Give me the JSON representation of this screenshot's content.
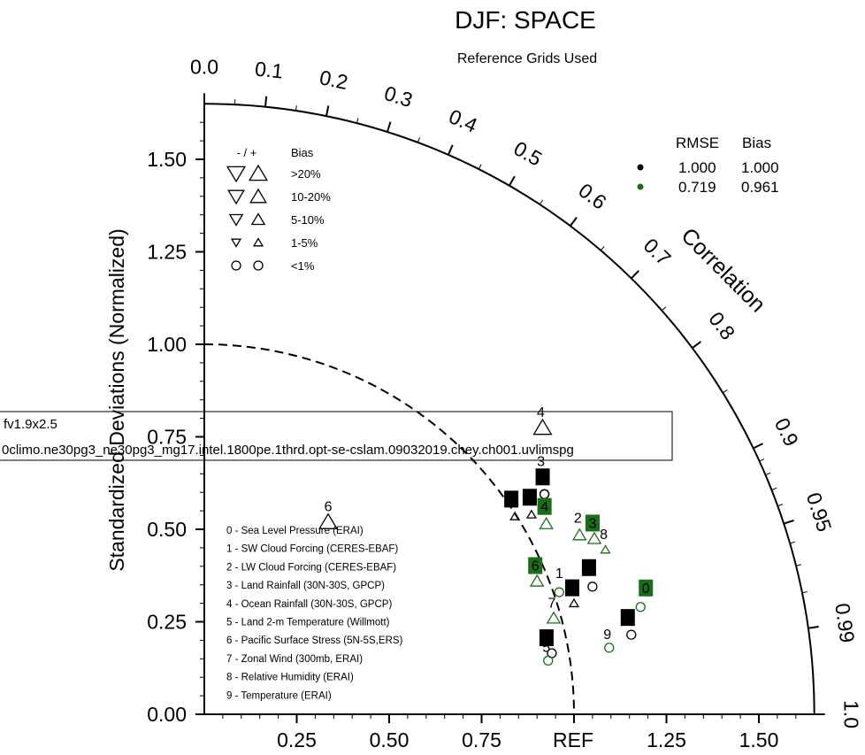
{
  "title": "DJF: SPACE",
  "subtitle": "Reference Grids Used",
  "ylabel": "Standardized Deviations (Normalized)",
  "arc_label": "Correlation",
  "ref_label": "REF",
  "y_ticks": [
    "0.00",
    "0.25",
    "0.50",
    "0.75",
    "1.00",
    "1.25",
    "1.50"
  ],
  "x_ticks": [
    "0.25",
    "0.50",
    "0.75",
    "1.25",
    "1.50"
  ],
  "corr_ticks": [
    "0.0",
    "0.1",
    "0.2",
    "0.3",
    "0.4",
    "0.5",
    "0.6",
    "0.7",
    "0.8",
    "0.9",
    "0.95",
    "0.99",
    "1.0"
  ],
  "bias_legend": {
    "header_sign": "- / +",
    "header_bias": "Bias",
    "rows": [
      ">20%",
      "10-20%",
      "5-10%",
      "1-5%",
      "<1%"
    ]
  },
  "stats_legend": {
    "header_rmse": "RMSE",
    "header_bias": "Bias",
    "rows": [
      {
        "rmse": "1.000",
        "bias": "1.000",
        "color": "#000000"
      },
      {
        "rmse": "0.719",
        "bias": "0.961",
        "color": "#1a6e1a"
      }
    ]
  },
  "case_box": {
    "line1": "fv1.9x2.5",
    "line2": "0climo.ne30pg3_ne30pg3_mg17.intel.1800pe.1thrd.opt-se-cslam.09032019.chey.ch001.uvlimspg"
  },
  "variables": [
    "0 - Sea Level Pressure (ERAI)",
    "1 - SW Cloud Forcing (CERES-EBAF)",
    "2 - LW Cloud Forcing (CERES-EBAF)",
    "3 - Land Rainfall (30N-30S, GPCP)",
    "4 - Ocean Rainfall (30N-30S, GPCP)",
    "5 - Land 2-m Temperature (Willmott)",
    "6 - Pacific Surface Stress (5N-5S,ERS)",
    "7 - Zonal Wind (300mb, ERAI)",
    "8 - Relative Humidity (ERAI)",
    "9 - Temperature (ERAI)"
  ],
  "chart_data": {
    "type": "scatter",
    "description_type": "taylor-diagram",
    "title": "DJF: SPACE",
    "subtitle": "Reference Grids Used",
    "ylabel": "Standardized Deviations (Normalized)",
    "arc_label": "Correlation",
    "std_range": [
      0,
      1.65
    ],
    "reference_std": 1.0,
    "series": [
      {
        "name": "fv1.9x2.5",
        "color": "#000000",
        "label_style": "box",
        "points": [
          {
            "id": "0",
            "x": 1.05,
            "y": 0.345,
            "marker": "circle",
            "bias_class": "<1%",
            "label": "0"
          },
          {
            "id": "1",
            "x": 0.84,
            "y": 0.535,
            "marker": "up",
            "bias_class": "1-5%",
            "label": "1"
          },
          {
            "id": "2",
            "x": 0.92,
            "y": 0.595,
            "marker": "circle",
            "bias_class": "<1%",
            "label": "2"
          },
          {
            "id": "3",
            "x": 0.92,
            "y": 0.595,
            "marker": "circle",
            "bias_class": "<1%",
            "label": "3",
            "label_plain": true
          },
          {
            "id": "4",
            "x": 0.915,
            "y": 0.775,
            "marker": "up",
            "bias_class": ">20%",
            "label": "4",
            "label_plain": true
          },
          {
            "id": "5",
            "x": 0.94,
            "y": 0.165,
            "marker": "circle",
            "bias_class": "<1%",
            "label": "5"
          },
          {
            "id": "6",
            "x": 0.335,
            "y": 0.52,
            "marker": "up",
            "bias_class": ">20%",
            "label": "6",
            "label_plain": true
          },
          {
            "id": "7",
            "x": 1.0,
            "y": 0.3,
            "marker": "up",
            "bias_class": "1-5%",
            "label": "7"
          },
          {
            "id": "8",
            "x": 0.885,
            "y": 0.54,
            "marker": "up",
            "bias_class": "1-5%",
            "label": "8"
          },
          {
            "id": "9",
            "x": 1.155,
            "y": 0.215,
            "marker": "circle",
            "bias_class": "<1%",
            "label": "9"
          }
        ]
      },
      {
        "name": "0climo.ne30pg3_ne30pg3_mg17.intel.1800pe.1thrd.opt-se-cslam.09032019.chey.ch001.uvlimspg",
        "color": "#1a6e1a",
        "label_style": "mixed",
        "points": [
          {
            "id": "0",
            "x": 1.18,
            "y": 0.29,
            "marker": "circle",
            "bias_class": "<1%",
            "label": "0"
          },
          {
            "id": "1",
            "x": 0.96,
            "y": 0.33,
            "marker": "circle",
            "bias_class": "<1%",
            "label": "1",
            "label_plain": true
          },
          {
            "id": "2",
            "x": 1.015,
            "y": 0.485,
            "marker": "up",
            "bias_class": "5-10%",
            "label": "2",
            "label_plain": true
          },
          {
            "id": "3",
            "x": 1.055,
            "y": 0.475,
            "marker": "up",
            "bias_class": "5-10%",
            "label": "3"
          },
          {
            "id": "4",
            "x": 0.925,
            "y": 0.515,
            "marker": "up",
            "bias_class": "5-10%",
            "label": "4"
          },
          {
            "id": "5",
            "x": 0.93,
            "y": 0.145,
            "marker": "circle",
            "bias_class": "<1%",
            "label": "5",
            "label_plain": true
          },
          {
            "id": "6",
            "x": 0.9,
            "y": 0.36,
            "marker": "up",
            "bias_class": "5-10%",
            "label": "6"
          },
          {
            "id": "7",
            "x": 0.945,
            "y": 0.26,
            "marker": "up",
            "bias_class": "5-10%",
            "label": "7",
            "label_plain": true
          },
          {
            "id": "8",
            "x": 1.085,
            "y": 0.445,
            "marker": "up",
            "bias_class": "1-5%",
            "label": "8",
            "label_plain": true
          },
          {
            "id": "9",
            "x": 1.095,
            "y": 0.18,
            "marker": "circle",
            "bias_class": "<1%",
            "label": "9",
            "label_plain": true
          }
        ]
      }
    ],
    "legend_placement": "top-right",
    "grid": false
  }
}
